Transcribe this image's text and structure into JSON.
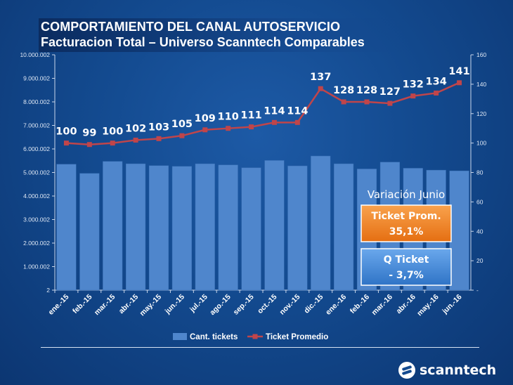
{
  "header": {
    "title": "COMPORTAMIENTO DEL CANAL AUTOSERVICIO",
    "subtitle": "Facturacion Total – Universo Scanntech Comparables"
  },
  "chart_data": {
    "type": "bar",
    "categories": [
      "ene.-15",
      "feb.-15",
      "mar.-15",
      "abr.-15",
      "may.-15",
      "jun.-15",
      "jul.-15",
      "ago.-15",
      "sep.-15",
      "oct.-15",
      "nov.-15",
      "dic.-15",
      "ene.-16",
      "feb.-16",
      "mar.-16",
      "abr.-16",
      "may.-16",
      "jun.-16"
    ],
    "series": [
      {
        "name": "Cant. tickets",
        "type": "bar",
        "axis": "left",
        "values": [
          5350000,
          4960000,
          5470000,
          5370000,
          5290000,
          5260000,
          5370000,
          5320000,
          5200000,
          5510000,
          5280000,
          5700000,
          5370000,
          5150000,
          5440000,
          5180000,
          5100000,
          5070000
        ]
      },
      {
        "name": "Ticket Promedio",
        "type": "line",
        "axis": "right",
        "values": [
          100,
          99,
          100,
          102,
          103,
          105,
          109,
          110,
          111,
          114,
          114,
          137,
          128,
          128,
          127,
          132,
          134,
          141
        ],
        "labels": [
          "100",
          "99",
          "100",
          "102",
          "103",
          "105",
          "109",
          "110",
          "111",
          "114",
          "114",
          "137",
          "128",
          "128",
          "127",
          "132",
          "134",
          "141"
        ]
      }
    ],
    "y_left": {
      "min": 2,
      "max": 10000002,
      "ticks": [
        2,
        1000002,
        2000002,
        3000002,
        4000002,
        5000002,
        6000002,
        7000002,
        8000002,
        9000002,
        10000002
      ],
      "tick_labels": [
        "2",
        "1.000.002",
        "2.000.002",
        "3.000.002",
        "4.000.002",
        "5.000.002",
        "6.000.002",
        "7.000.002",
        "8.000.002",
        "9.000.002",
        "10.000.002"
      ]
    },
    "y_right": {
      "min": 0,
      "max": 160,
      "ticks": [
        0,
        20,
        40,
        60,
        80,
        100,
        120,
        140,
        160
      ],
      "tick_labels": [
        "-",
        "20",
        "40",
        "60",
        "80",
        "100",
        "120",
        "140",
        "160"
      ]
    },
    "grid": false,
    "legend_position": "bottom",
    "colors": {
      "bar": "#4f86cc",
      "line": "#c0454a",
      "label": "#ffffff"
    }
  },
  "callouts": {
    "heading": "Variación Junio",
    "ticket_prom": {
      "label": "Ticket Prom.",
      "value": "35,1%",
      "color": "#f08a2c"
    },
    "q_ticket": {
      "label": "Q Ticket",
      "value": "- 3,7%",
      "color": "#4a90d9"
    }
  },
  "brand": {
    "logo_text": "scanntech"
  }
}
